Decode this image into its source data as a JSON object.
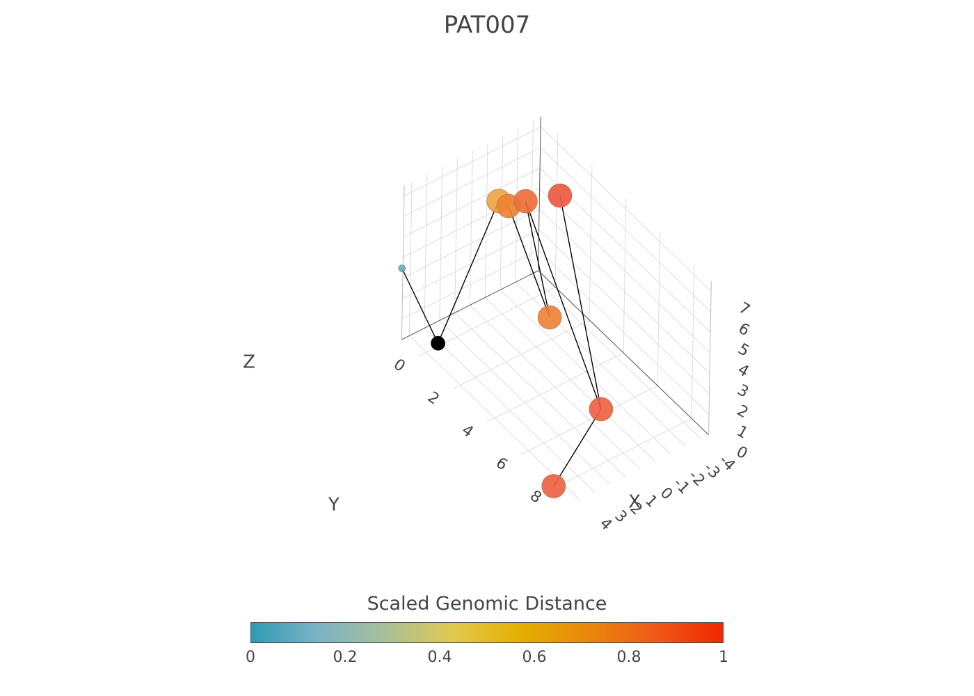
{
  "chart_data": {
    "type": "scatter3d",
    "title": "PAT007",
    "axes": {
      "x": {
        "label": "X",
        "range": [
          -1,
          9
        ],
        "ticks": [
          0,
          2,
          4,
          6,
          8
        ]
      },
      "y": {
        "label": "Y",
        "range": [
          -4.5,
          4.5
        ],
        "ticks": [
          -4,
          -3,
          -2,
          -1,
          0,
          1,
          2,
          3,
          4
        ]
      },
      "z": {
        "label": "Z",
        "range": [
          0,
          7.5
        ],
        "ticks": [
          0,
          1,
          2,
          3,
          4,
          5,
          6,
          7
        ]
      }
    },
    "grid": true,
    "colorbar": {
      "title": "Scaled Genomic Distance",
      "range": [
        0,
        1
      ],
      "ticks": [
        "0",
        "0.2",
        "0.4",
        "0.6",
        "0.8",
        "1"
      ],
      "colors": [
        "#2f9bb3",
        "#7db3c5",
        "#a8c099",
        "#e0c94e",
        "#e3b000",
        "#e8880c",
        "#ef5a18",
        "#ee2800"
      ]
    },
    "points": [
      {
        "x": 1.1,
        "y": 4.5,
        "z": 1.5,
        "color": "#000000",
        "value": null
      },
      {
        "x": 1.6,
        "y": 1.2,
        "z": 7.6,
        "color": "#f0a442",
        "value": 0.62
      },
      {
        "x": 2.0,
        "y": 1.0,
        "z": 7.6,
        "color": "#ee8233",
        "value": 0.75
      },
      {
        "x": 2.4,
        "y": -1.4,
        "z": 1.6,
        "color": "#ee8236",
        "value": 0.75
      },
      {
        "x": 0.1,
        "y": -4.6,
        "z": 4.5,
        "color": "#ee5940",
        "value": 0.85
      },
      {
        "x": 0.2,
        "y": -2.2,
        "z": 5.2,
        "color": "#ee6e39",
        "value": 0.8
      },
      {
        "x": 5.8,
        "y": -1.0,
        "z": 0.0,
        "color": "#ee6242",
        "value": 0.82
      },
      {
        "x": 8.0,
        "y": 4.6,
        "z": 0.1,
        "color": "#ee6242",
        "value": 0.82
      },
      {
        "x": -0.1,
        "y": 5.6,
        "z": 4.6,
        "color": "#5fb1c8",
        "value": 0.05
      }
    ],
    "path_order": [
      8,
      0,
      1,
      2,
      3,
      5,
      6,
      4,
      6,
      7
    ]
  }
}
